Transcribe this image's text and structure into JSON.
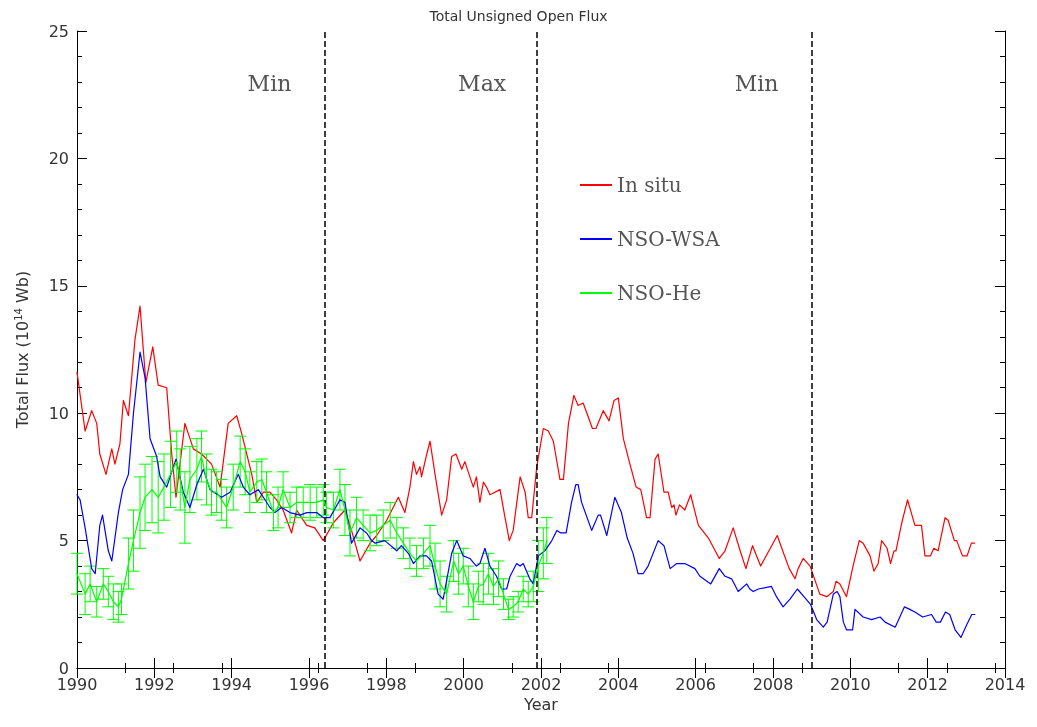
{
  "chart_data": {
    "type": "line",
    "title": "Total Unsigned Open Flux",
    "xlabel": "Year",
    "ylabel": "Total Flux (10$^{14}$ Wb)",
    "xlim": [
      1990,
      2014
    ],
    "xticks": [
      1990,
      1992,
      1994,
      1996,
      1998,
      2000,
      2002,
      2004,
      2006,
      2008,
      2010,
      2012,
      2014
    ],
    "ylim": [
      0,
      25
    ],
    "yticks": [
      0,
      5,
      10,
      15,
      20,
      25
    ],
    "grid": false,
    "legend": "top right",
    "marker": "none",
    "line_style": "solid",
    "ref_lines": [
      {
        "axis": "x",
        "value": 1996.4,
        "line_style": "dashed",
        "color": "#000000"
      },
      {
        "axis": "x",
        "value": 2001.9,
        "line_style": "dashed",
        "color": "#000000"
      },
      {
        "axis": "x",
        "value": 2009.0,
        "line_style": "dashed",
        "color": "#000000"
      }
    ],
    "annotations": [
      "Min",
      "Max",
      "Min"
    ],
    "series": [
      {
        "name": "In situ",
        "color": "#ff0000",
        "x": [
          1990.0,
          1990.21,
          1990.38,
          1990.51,
          1990.59,
          1990.75,
          1990.9,
          1990.98,
          1991.11,
          1991.2,
          1991.33,
          1991.5,
          1991.63,
          1991.78,
          1991.96,
          1992.1,
          1992.32,
          1992.45,
          1992.56,
          1992.79,
          1993.01,
          1993.22,
          1993.48,
          1993.7,
          1993.91,
          1994.13,
          1994.26,
          1994.52,
          1994.65,
          1994.82,
          1994.99,
          1995.16,
          1995.33,
          1995.55,
          1995.68,
          1995.94,
          1996.15,
          1996.37,
          1996.63,
          1996.93,
          1997.1,
          1997.32,
          1997.58,
          1997.75,
          1998.01,
          1998.31,
          1998.48,
          1998.61,
          1998.7,
          1998.78,
          1998.87,
          1998.91,
          1999.03,
          1999.13,
          1999.26,
          1999.43,
          1999.56,
          1999.69,
          1999.8,
          1999.95,
          2000.03,
          2000.25,
          2000.33,
          2000.42,
          2000.51,
          2000.59,
          2000.68,
          2000.94,
          2001.07,
          2001.18,
          2001.28,
          2001.46,
          2001.59,
          2001.67,
          2001.76,
          2001.89,
          2002.06,
          2002.19,
          2002.32,
          2002.49,
          2002.58,
          2002.71,
          2002.85,
          2002.96,
          2003.09,
          2003.33,
          2003.42,
          2003.61,
          2003.76,
          2003.89,
          2004.0,
          2004.13,
          2004.3,
          2004.46,
          2004.58,
          2004.73,
          2004.82,
          2004.95,
          2005.03,
          2005.18,
          2005.29,
          2005.38,
          2005.44,
          2005.49,
          2005.58,
          2005.72,
          2005.87,
          2006.07,
          2006.33,
          2006.61,
          2006.76,
          2006.97,
          2007.15,
          2007.3,
          2007.47,
          2007.68,
          2008.11,
          2008.25,
          2008.42,
          2008.57,
          2008.65,
          2008.78,
          2008.96,
          2009.21,
          2009.39,
          2009.56,
          2009.63,
          2009.73,
          2009.9,
          2010.07,
          2010.23,
          2010.33,
          2010.51,
          2010.61,
          2010.72,
          2010.81,
          2010.95,
          2011.04,
          2011.13,
          2011.18,
          2011.33,
          2011.48,
          2011.67,
          2011.84,
          2011.93,
          2012.07,
          2012.16,
          2012.27,
          2012.45,
          2012.53,
          2012.69,
          2012.75,
          2012.9,
          2013.02,
          2013.13,
          2013.21
        ],
        "values": [
          11.6,
          9.3,
          10.1,
          9.6,
          8.4,
          7.6,
          8.6,
          8.0,
          8.8,
          10.5,
          9.9,
          12.9,
          14.2,
          11.2,
          12.6,
          11.1,
          11.0,
          8.4,
          6.7,
          9.6,
          8.6,
          8.4,
          8.0,
          7.1,
          9.6,
          9.9,
          9.2,
          7.6,
          6.5,
          6.9,
          6.9,
          6.6,
          6.2,
          5.3,
          6.2,
          5.6,
          5.5,
          5.0,
          5.7,
          6.2,
          5.4,
          4.2,
          4.9,
          5.2,
          5.8,
          6.7,
          6.1,
          7.1,
          8.1,
          7.6,
          7.9,
          7.5,
          8.3,
          8.9,
          7.6,
          6.0,
          6.6,
          8.3,
          8.4,
          7.8,
          8.1,
          7.1,
          7.5,
          6.5,
          7.3,
          7.1,
          6.8,
          7.0,
          5.9,
          5.0,
          5.4,
          7.5,
          6.9,
          5.9,
          5.9,
          7.9,
          9.4,
          9.3,
          8.9,
          7.4,
          7.4,
          9.6,
          10.7,
          10.3,
          10.4,
          9.4,
          9.4,
          10.1,
          9.7,
          10.5,
          10.6,
          9.0,
          8.0,
          7.1,
          7.0,
          5.9,
          5.9,
          8.2,
          8.4,
          6.9,
          6.9,
          6.3,
          6.4,
          6.0,
          6.4,
          6.2,
          6.8,
          5.6,
          5.1,
          4.3,
          4.6,
          5.5,
          4.6,
          3.9,
          4.8,
          4.0,
          5.2,
          4.6,
          3.9,
          3.5,
          3.9,
          4.3,
          4.0,
          2.9,
          2.8,
          3.0,
          3.4,
          3.3,
          2.8,
          4.0,
          5.0,
          4.9,
          4.4,
          3.8,
          4.1,
          5.0,
          4.7,
          4.1,
          4.6,
          4.6,
          5.7,
          6.6,
          5.6,
          5.6,
          4.4,
          4.4,
          4.7,
          4.6,
          5.9,
          5.8,
          5.0,
          5.0,
          4.4,
          4.4,
          4.9,
          4.9
        ]
      },
      {
        "name": "NSO-WSA",
        "color": "#0000ff",
        "x": [
          1990.0,
          1990.08,
          1990.21,
          1990.38,
          1990.47,
          1990.59,
          1990.66,
          1990.81,
          1990.9,
          1991.07,
          1991.18,
          1991.33,
          1991.46,
          1991.63,
          1991.76,
          1991.89,
          1992.06,
          1992.15,
          1992.32,
          1992.56,
          1992.75,
          1992.92,
          1993.1,
          1993.27,
          1993.44,
          1993.74,
          1993.96,
          1994.17,
          1994.3,
          1994.47,
          1994.69,
          1994.82,
          1994.99,
          1995.12,
          1995.29,
          1995.51,
          1995.77,
          1995.94,
          1996.2,
          1996.37,
          1996.54,
          1996.8,
          1996.93,
          1997.1,
          1997.32,
          1997.49,
          1997.62,
          1997.71,
          1997.96,
          1998.27,
          1998.39,
          1998.57,
          1998.7,
          1998.87,
          1999.04,
          1999.17,
          1999.34,
          1999.47,
          1999.69,
          1999.82,
          1999.99,
          2000.16,
          2000.33,
          2000.42,
          2000.55,
          2000.68,
          2000.85,
          2000.98,
          2001.11,
          2001.2,
          2001.37,
          2001.46,
          2001.54,
          2001.71,
          2001.8,
          2001.93,
          2002.1,
          2002.28,
          2002.41,
          2002.51,
          2002.65,
          2002.79,
          2002.9,
          2002.96,
          2003.05,
          2003.31,
          2003.48,
          2003.54,
          2003.7,
          2003.91,
          2004.08,
          2004.23,
          2004.38,
          2004.51,
          2004.64,
          2004.77,
          2005.03,
          2005.18,
          2005.34,
          2005.51,
          2005.72,
          2005.98,
          2006.11,
          2006.39,
          2006.61,
          2006.76,
          2006.93,
          2007.1,
          2007.32,
          2007.4,
          2007.49,
          2007.62,
          2007.96,
          2008.09,
          2008.26,
          2008.44,
          2008.63,
          2008.8,
          2008.97,
          2009.13,
          2009.3,
          2009.4,
          2009.56,
          2009.66,
          2009.73,
          2009.82,
          2009.9,
          2010.06,
          2010.12,
          2010.33,
          2010.55,
          2010.77,
          2010.9,
          2011.16,
          2011.4,
          2011.54,
          2011.67,
          2011.87,
          2012.1,
          2012.22,
          2012.33,
          2012.46,
          2012.57,
          2012.71,
          2012.86,
          2013.01,
          2013.14,
          2013.22
        ],
        "values": [
          6.8,
          6.6,
          5.5,
          3.9,
          3.7,
          5.6,
          6.0,
          4.6,
          4.2,
          6.1,
          7.0,
          7.6,
          10.0,
          12.4,
          11.4,
          9.0,
          8.3,
          7.5,
          7.1,
          8.2,
          6.9,
          6.3,
          7.2,
          7.8,
          7.0,
          6.7,
          6.9,
          7.6,
          7.1,
          6.8,
          7.0,
          6.7,
          6.3,
          6.1,
          6.3,
          6.1,
          6.0,
          6.1,
          6.1,
          5.9,
          5.9,
          6.6,
          6.5,
          4.9,
          5.5,
          5.3,
          5.0,
          4.9,
          5.0,
          4.6,
          4.8,
          4.5,
          4.1,
          4.4,
          4.4,
          4.2,
          2.9,
          2.7,
          4.5,
          5.0,
          4.4,
          4.3,
          4.0,
          4.1,
          4.7,
          4.0,
          3.6,
          3.1,
          3.1,
          3.6,
          4.1,
          4.0,
          4.1,
          3.5,
          3.3,
          4.4,
          4.6,
          5.0,
          5.4,
          5.3,
          5.3,
          6.5,
          7.2,
          7.2,
          6.5,
          5.4,
          6.0,
          6.0,
          5.2,
          6.7,
          6.1,
          5.1,
          4.5,
          3.7,
          3.7,
          4.0,
          5.0,
          4.8,
          3.9,
          4.1,
          4.1,
          3.9,
          3.6,
          3.3,
          3.9,
          3.6,
          3.5,
          3.0,
          3.3,
          3.1,
          3.0,
          3.1,
          3.2,
          2.8,
          2.4,
          2.7,
          3.1,
          2.8,
          2.5,
          1.9,
          1.6,
          1.8,
          2.9,
          3.0,
          2.8,
          1.8,
          1.5,
          1.5,
          2.3,
          2.0,
          1.9,
          2.0,
          1.8,
          1.6,
          2.4,
          2.3,
          2.2,
          2.0,
          2.1,
          1.8,
          1.8,
          2.2,
          2.1,
          1.5,
          1.2,
          1.7,
          2.1,
          2.1
        ]
      },
      {
        "name": "NSO-He",
        "color": "#00ff00",
        "x": [
          1990.0,
          1990.21,
          1990.34,
          1990.51,
          1990.68,
          1990.81,
          1990.94,
          1991.07,
          1991.15,
          1991.33,
          1991.46,
          1991.63,
          1991.76,
          1991.94,
          1992.1,
          1992.25,
          1992.42,
          1992.58,
          1992.67,
          1992.79,
          1992.92,
          1993.1,
          1993.22,
          1993.35,
          1993.48,
          1993.61,
          1993.74,
          1993.87,
          1994.04,
          1994.22,
          1994.35,
          1994.47,
          1994.65,
          1994.78,
          1994.9,
          1995.08,
          1995.2,
          1995.33,
          1995.51,
          1995.68,
          1995.85,
          1996.03,
          1996.2,
          1996.37,
          1996.45,
          1996.63,
          1996.8,
          1996.93,
          1997.06,
          1997.23,
          1997.4,
          1997.58,
          1997.75,
          1997.92,
          1998.1,
          1998.27,
          1998.44,
          1998.61,
          1998.78,
          1998.96,
          1999.13,
          1999.26,
          1999.39,
          1999.56,
          1999.74,
          1999.87,
          1999.99,
          2000.12,
          2000.25,
          2000.38,
          2000.51,
          2000.64,
          2000.77,
          2000.9,
          2001.03,
          2001.16,
          2001.28,
          2001.41,
          2001.54,
          2001.67,
          2001.8,
          2001.93,
          2002.06,
          2002.15
        ],
        "values": [
          3.7,
          2.9,
          3.3,
          2.6,
          3.3,
          3.0,
          2.6,
          2.4,
          2.7,
          4.1,
          5.0,
          6.1,
          6.7,
          7.0,
          6.7,
          7.1,
          7.6,
          8.1,
          7.4,
          6.3,
          7.4,
          7.8,
          8.3,
          7.4,
          6.9,
          6.9,
          6.6,
          6.3,
          7.1,
          8.1,
          7.7,
          6.9,
          7.3,
          7.4,
          6.9,
          6.1,
          6.3,
          7.0,
          6.3,
          6.5,
          6.5,
          6.5,
          6.5,
          6.6,
          6.3,
          6.2,
          7.0,
          6.2,
          5.3,
          5.9,
          5.6,
          5.3,
          5.4,
          5.6,
          5.8,
          5.3,
          4.9,
          4.5,
          4.2,
          4.5,
          4.8,
          4.0,
          3.3,
          2.9,
          4.2,
          3.7,
          4.0,
          3.2,
          2.6,
          3.2,
          3.3,
          3.7,
          3.2,
          3.5,
          2.9,
          2.3,
          2.4,
          2.6,
          3.1,
          2.9,
          3.2,
          4.0,
          4.5,
          5.0
        ],
        "errors": [
          0.8,
          0.8,
          0.7,
          0.6,
          0.6,
          0.6,
          0.7,
          0.6,
          0.6,
          1.0,
          1.2,
          1.4,
          1.3,
          1.3,
          1.4,
          1.3,
          1.3,
          1.2,
          1.2,
          1.4,
          1.3,
          1.2,
          1.0,
          1.0,
          0.9,
          0.8,
          0.8,
          0.8,
          0.9,
          1.0,
          0.9,
          0.8,
          0.8,
          0.8,
          0.8,
          0.7,
          0.8,
          0.7,
          0.6,
          0.6,
          0.6,
          0.7,
          0.6,
          0.6,
          0.6,
          0.7,
          0.8,
          1.0,
          0.9,
          0.8,
          0.6,
          0.7,
          0.6,
          0.6,
          0.7,
          0.6,
          0.6,
          0.6,
          0.6,
          0.6,
          0.8,
          0.9,
          0.9,
          0.7,
          0.8,
          0.8,
          0.7,
          0.8,
          0.7,
          0.6,
          0.8,
          0.8,
          0.7,
          0.7,
          0.6,
          0.4,
          0.4,
          0.4,
          0.5,
          0.5,
          0.6,
          1.0,
          1.0,
          0.9
        ]
      }
    ]
  }
}
